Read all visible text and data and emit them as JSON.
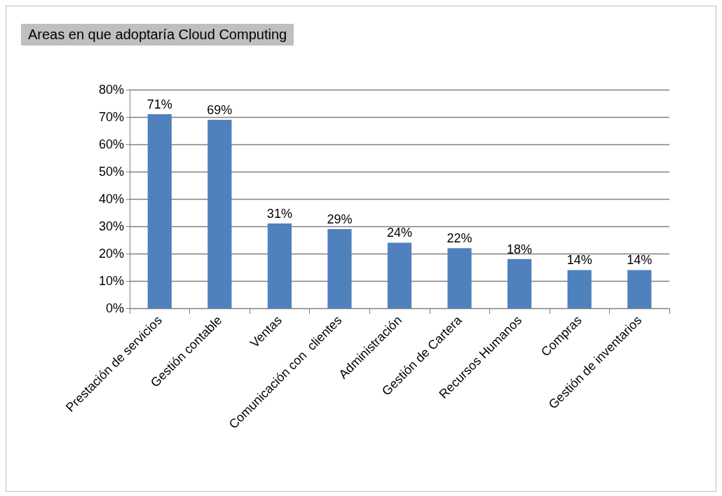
{
  "chart_data": {
    "type": "bar",
    "title": "Areas en que adoptaría Cloud Computing",
    "categories": [
      "Prestación de servicios",
      "Gestión contable",
      "Ventas",
      "Comunicación con  clientes",
      "Administración",
      "Gestión de Cartera",
      "Recursos Humanos",
      "Compras",
      "Gestión de inventarios"
    ],
    "values": [
      71,
      69,
      31,
      29,
      24,
      22,
      18,
      14,
      14
    ],
    "value_labels": [
      "71%",
      "69%",
      "31%",
      "29%",
      "24%",
      "22%",
      "18%",
      "14%",
      "14%"
    ],
    "color": "#4f81bd",
    "ylim": [
      0,
      80
    ],
    "yticks": [
      {
        "value": 0,
        "label": "0%"
      },
      {
        "value": 10,
        "label": "10%"
      },
      {
        "value": 20,
        "label": "20%"
      },
      {
        "value": 30,
        "label": "30%"
      },
      {
        "value": 40,
        "label": "40%"
      },
      {
        "value": 50,
        "label": "50%"
      },
      {
        "value": 60,
        "label": "60%"
      },
      {
        "value": 70,
        "label": "70%"
      },
      {
        "value": 80,
        "label": "80%"
      }
    ],
    "grid": "y"
  }
}
